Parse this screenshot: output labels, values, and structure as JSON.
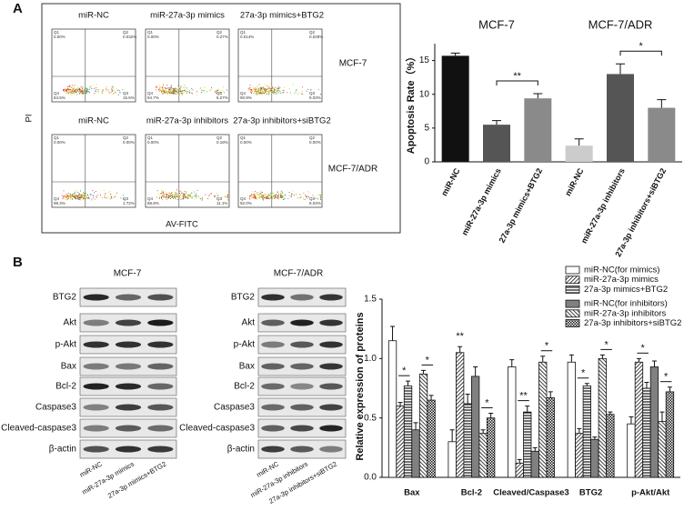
{
  "panels": {
    "a": "A",
    "b": "B"
  },
  "flow": {
    "columns": [
      [
        "miR-NC",
        "miR-27a-3p mimics",
        "27a-3p mimics+BTG2"
      ],
      [
        "miR-NC",
        "miR-27a-3p inhibitors",
        "27a-3p inhibitors+siBTG2"
      ]
    ],
    "rows": [
      "MCF-7",
      "MCF-7/ADR"
    ],
    "x_label": "AV-FITC",
    "y_label": "PI",
    "quadrant_names": [
      "Q1",
      "Q2",
      "Q4",
      "Q3"
    ],
    "quadrants": [
      [
        [
          "0.00%",
          "0.032%",
          "84.5%",
          "15.5%"
        ],
        [
          "0.00%",
          "0.27%",
          "94.7%",
          "5.27%"
        ],
        [
          "0.014%",
          "0.028%",
          "90.9%",
          "9.03%"
        ]
      ],
      [
        [
          "0.00%",
          "0.00%",
          "98.3%",
          "1.72%"
        ],
        [
          "0.00%",
          "0.18%",
          "88.8%",
          "11.1%"
        ],
        [
          "0.00%",
          "0.00%",
          "92.0%",
          "8.03%"
        ]
      ]
    ]
  },
  "blots": {
    "left": {
      "title": "MCF-7",
      "proteins": [
        "BTG2",
        "Akt",
        "p-Akt",
        "Bax",
        "Bcl-2",
        "Caspase3",
        "Cleaved-caspase3",
        "β-actin"
      ],
      "lanes": [
        "miR-NC",
        "miR-27a-3p mimics",
        "27a-3p mimics+BTG2"
      ]
    },
    "right": {
      "title": "MCF-7/ADR",
      "proteins": [
        "BTG2",
        "Akt",
        "p-Akt",
        "Bax",
        "Bcl-2",
        "Caspase3",
        "Cleaved-caspase3",
        "β-actin"
      ],
      "lanes": [
        "miR-NC",
        "miR-27a-3p inhibitors",
        "27a-3p inhibitors+siBTG2"
      ]
    }
  },
  "chart_data": [
    {
      "type": "bar",
      "y_label": "Apoptosis Rate（%）",
      "groups": [
        "MCF-7",
        "MCF-7/ADR"
      ],
      "categories": [
        "miR-NC",
        "miR-27a-3p mimics",
        "27a-3p mimics+BTG2",
        "miR-NC",
        "miR-27a-3p inhibitors",
        "27a-3p inhibitors+siBTG2"
      ],
      "values": [
        15.7,
        5.5,
        9.4,
        2.4,
        13.0,
        8.0
      ],
      "errors": [
        0.4,
        0.6,
        0.7,
        1.0,
        1.5,
        1.2
      ],
      "colors": [
        "#111111",
        "#555555",
        "#8a8a8a",
        "#cccccc",
        "#555555",
        "#8a8a8a"
      ],
      "ylim": [
        0,
        17.5
      ],
      "yticks": [
        0,
        5,
        10,
        15
      ],
      "significance": [
        {
          "from": 1,
          "to": 2,
          "label": "**"
        },
        {
          "from": 4,
          "to": 5,
          "label": "*"
        }
      ]
    },
    {
      "type": "grouped_bar",
      "y_label": "Relative expression of proteins",
      "categories": [
        "Bax",
        "Bcl-2",
        "Cleaved/Caspase3",
        "BTG2",
        "p-Akt/Akt"
      ],
      "series": [
        {
          "name": "miR-NC(for mimics)",
          "color": "#ffffff",
          "pattern": "none",
          "values": [
            1.15,
            0.3,
            0.93,
            0.97,
            0.45
          ],
          "errors": [
            0.12,
            0.1,
            0.06,
            0.06,
            0.06
          ]
        },
        {
          "name": "miR-27a-3p mimics",
          "color": "#ffffff",
          "pattern": "diag",
          "values": [
            0.6,
            1.05,
            0.12,
            0.37,
            0.97
          ],
          "errors": [
            0.03,
            0.05,
            0.03,
            0.04,
            0.03
          ]
        },
        {
          "name": "27a-3p mimics+BTG2",
          "color": "#ffffff",
          "pattern": "hstripe",
          "values": [
            0.77,
            0.62,
            0.55,
            0.77,
            0.75
          ],
          "errors": [
            0.04,
            0.08,
            0.05,
            0.02,
            0.05
          ]
        },
        {
          "name": "miR-NC(for inhibitors)",
          "color": "#808080",
          "pattern": "none",
          "values": [
            0.4,
            0.85,
            0.22,
            0.32,
            0.93
          ],
          "errors": [
            0.06,
            0.08,
            0.03,
            0.02,
            0.05
          ]
        },
        {
          "name": "miR-27a-3p inhibitors",
          "color": "#ffffff",
          "pattern": "diagrev",
          "values": [
            0.87,
            0.37,
            0.97,
            1.0,
            0.47
          ],
          "errors": [
            0.03,
            0.03,
            0.05,
            0.03,
            0.08
          ]
        },
        {
          "name": "27a-3p inhibitors+siBTG2",
          "color": "#ffffff",
          "pattern": "dots",
          "values": [
            0.65,
            0.5,
            0.67,
            0.53,
            0.72
          ],
          "errors": [
            0.04,
            0.04,
            0.05,
            0.02,
            0.04
          ]
        }
      ],
      "ylim": [
        0,
        1.5
      ],
      "yticks": [
        {
          "value": 0,
          "label": "0.0"
        },
        0.5,
        {
          "value": 1,
          "label": "1.0"
        },
        1.5
      ],
      "significance": [
        {
          "category": 0,
          "from": 1,
          "to": 2,
          "label": "*"
        },
        {
          "category": 0,
          "from": 4,
          "to": 5,
          "label": "*"
        },
        {
          "category": 1,
          "from": 1,
          "to": 1,
          "label": "**"
        },
        {
          "category": 1,
          "from": 4,
          "to": 5,
          "label": "*"
        },
        {
          "category": 2,
          "from": 1,
          "to": 2,
          "label": "**"
        },
        {
          "category": 2,
          "from": 4,
          "to": 5,
          "label": "*"
        },
        {
          "category": 3,
          "from": 1,
          "to": 2,
          "label": "*"
        },
        {
          "category": 3,
          "from": 4,
          "to": 5,
          "label": "*"
        },
        {
          "category": 4,
          "from": 1,
          "to": 2,
          "label": "*"
        },
        {
          "category": 4,
          "from": 4,
          "to": 5,
          "label": "*"
        }
      ]
    }
  ]
}
